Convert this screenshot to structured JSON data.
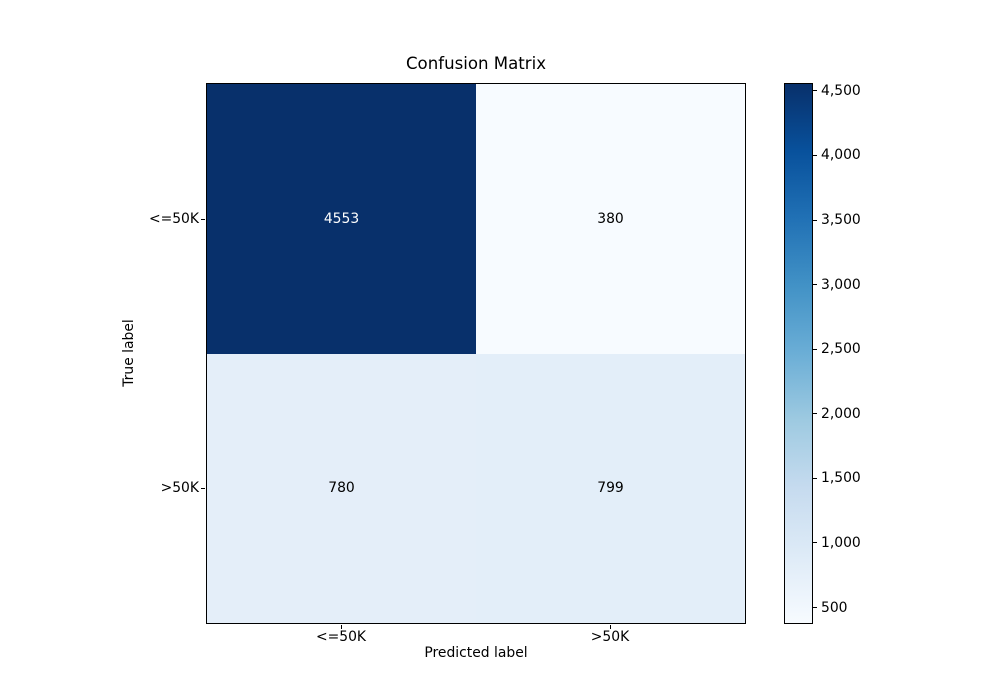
{
  "figure": {
    "background": "#ffffff"
  },
  "chart_data": {
    "type": "heatmap",
    "title": "Confusion Matrix",
    "xlabel": "Predicted label",
    "ylabel": "True label",
    "x_categories": [
      "<=50K",
      ">50K"
    ],
    "y_categories": [
      "<=50K",
      ">50K"
    ],
    "matrix": [
      [
        4553,
        380
      ],
      [
        780,
        799
      ]
    ],
    "vmin": 380,
    "vmax": 4553,
    "colormap": "Blues",
    "legend_position": "right-colorbar",
    "grid": false,
    "cell_colors": [
      [
        "#08306b",
        "#f7fbff"
      ],
      [
        "#e4eef9",
        "#e3eef9"
      ]
    ],
    "cell_text_colors": [
      [
        "#ffffff",
        "#000000"
      ],
      [
        "#000000",
        "#000000"
      ]
    ],
    "colorbar_gradient_stops": [
      "#f7fbff",
      "#deebf7",
      "#c6dbef",
      "#9ecae1",
      "#6baed6",
      "#4292c6",
      "#2171b5",
      "#08519c",
      "#08306b"
    ],
    "colorbar_ticks": [
      {
        "value": 500,
        "label": "500"
      },
      {
        "value": 1000,
        "label": "1,000"
      },
      {
        "value": 1500,
        "label": "1,500"
      },
      {
        "value": 2000,
        "label": "2,000"
      },
      {
        "value": 2500,
        "label": "2,500"
      },
      {
        "value": 3000,
        "label": "3,000"
      },
      {
        "value": 3500,
        "label": "3,500"
      },
      {
        "value": 4000,
        "label": "4,000"
      },
      {
        "value": 4500,
        "label": "4,500"
      }
    ]
  }
}
